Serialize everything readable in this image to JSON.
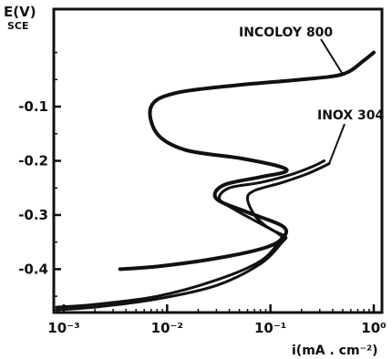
{
  "chart_data": {
    "type": "line",
    "title": "",
    "ylabel": "E(V)",
    "ylabel_sub": "SCE",
    "xlabel": "i(mA . cm⁻²)",
    "x_scale": "log",
    "xlim": [
      0.0008,
      1.2
    ],
    "ylim": [
      -0.48,
      0.08
    ],
    "x_ticks": [
      {
        "value": 0.001,
        "label": "10⁻³"
      },
      {
        "value": 0.01,
        "label": "10⁻²"
      },
      {
        "value": 0.1,
        "label": "10⁻¹"
      },
      {
        "value": 1,
        "label": "10⁰"
      }
    ],
    "y_ticks": [
      {
        "value": -0.1,
        "label": "-0.1"
      },
      {
        "value": -0.2,
        "label": "-0.2"
      },
      {
        "value": -0.3,
        "label": "-0.3"
      },
      {
        "value": -0.4,
        "label": "-0.4"
      }
    ],
    "grid": false,
    "series": [
      {
        "name": "INCOLOY 800",
        "x": [
          0.0035,
          0.008,
          0.03,
          0.09,
          0.135,
          0.13,
          0.06,
          0.03,
          0.035,
          0.08,
          0.14,
          0.12,
          0.05,
          0.015,
          0.008,
          0.007,
          0.012,
          0.05,
          0.2,
          0.5,
          0.8,
          1.0
        ],
        "y": [
          -0.4,
          -0.395,
          -0.38,
          -0.36,
          -0.34,
          -0.32,
          -0.295,
          -0.27,
          -0.245,
          -0.23,
          -0.22,
          -0.21,
          -0.195,
          -0.18,
          -0.15,
          -0.1,
          -0.075,
          -0.06,
          -0.05,
          -0.04,
          -0.015,
          0.0
        ]
      },
      {
        "name": "INOX 304",
        "x": [
          0.00085,
          0.002,
          0.008,
          0.03,
          0.08,
          0.125,
          0.12,
          0.09,
          0.07,
          0.06,
          0.07,
          0.13,
          0.22,
          0.33,
          0.37
        ],
        "y": [
          -0.47,
          -0.465,
          -0.45,
          -0.42,
          -0.385,
          -0.345,
          -0.335,
          -0.32,
          -0.3,
          -0.27,
          -0.255,
          -0.24,
          -0.225,
          -0.21,
          -0.205
        ]
      },
      {
        "name": "",
        "x": [
          0.00085,
          0.002,
          0.008,
          0.03,
          0.08,
          0.13,
          0.14,
          0.11,
          0.07,
          0.045,
          0.032,
          0.04,
          0.08,
          0.16,
          0.26,
          0.33
        ],
        "y": [
          -0.475,
          -0.47,
          -0.455,
          -0.43,
          -0.39,
          -0.35,
          -0.34,
          -0.33,
          -0.31,
          -0.29,
          -0.27,
          -0.25,
          -0.24,
          -0.225,
          -0.21,
          -0.2
        ]
      }
    ],
    "annotations": [
      {
        "text": "INCOLOY 800",
        "series": 0
      },
      {
        "text": "INOX 304",
        "series": 1
      }
    ]
  }
}
